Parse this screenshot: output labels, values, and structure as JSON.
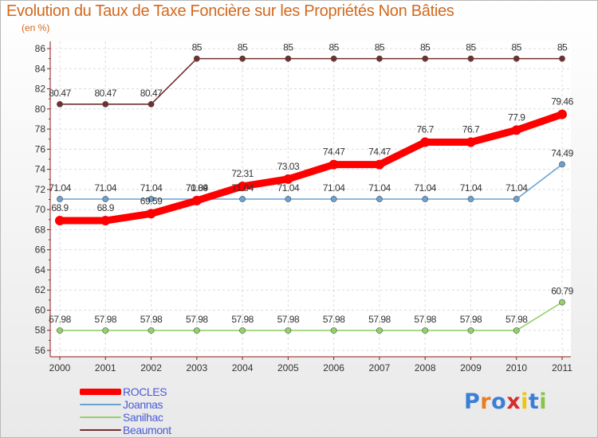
{
  "chart_data": {
    "type": "line",
    "title": "Evolution du Taux de Taxe Foncière sur les Propriétés Non Bâties",
    "subtitle": "(en %)",
    "xlabel": "",
    "ylabel": "",
    "ylim": [
      56,
      86
    ],
    "yticks": [
      56,
      58,
      60,
      62,
      64,
      66,
      68,
      70,
      72,
      74,
      76,
      78,
      80,
      82,
      84,
      86
    ],
    "categories": [
      "2000",
      "2001",
      "2002",
      "2003",
      "2004",
      "2005",
      "2006",
      "2007",
      "2008",
      "2009",
      "2010",
      "2011"
    ],
    "grid": true,
    "legend_position": "bottom-left",
    "series": [
      {
        "name": "Beaumont",
        "color": "#722f2f",
        "values": [
          80.47,
          80.47,
          80.47,
          85,
          85,
          85,
          85,
          85,
          85,
          85,
          85,
          85
        ],
        "labels": [
          "80.47",
          "80.47",
          "80.47",
          "85",
          "85",
          "85",
          "85",
          "85",
          "85",
          "85",
          "85",
          "85"
        ]
      },
      {
        "name": "Joannas",
        "color": "#6aa2d4",
        "values": [
          71.04,
          71.04,
          71.04,
          71.04,
          71.04,
          71.04,
          71.04,
          71.04,
          71.04,
          71.04,
          71.04,
          74.49
        ],
        "labels": [
          "71.04",
          "71.04",
          "71.04",
          "71.04",
          "71.04",
          "71.04",
          "71.04",
          "71.04",
          "71.04",
          "71.04",
          "71.04",
          "74.49"
        ]
      },
      {
        "name": "Sanilhac",
        "color": "#93d16a",
        "values": [
          57.98,
          57.98,
          57.98,
          57.98,
          57.98,
          57.98,
          57.98,
          57.98,
          57.98,
          57.98,
          57.98,
          60.79
        ],
        "labels": [
          "57.98",
          "57.98",
          "57.98",
          "57.98",
          "57.98",
          "57.98",
          "57.98",
          "57.98",
          "57.98",
          "57.98",
          "57.98",
          "60.79"
        ]
      },
      {
        "name": "ROCLES",
        "color": "#ff0000",
        "values": [
          68.9,
          68.9,
          69.59,
          70.89,
          72.31,
          73.03,
          74.47,
          74.47,
          76.7,
          76.7,
          77.9,
          79.46
        ],
        "labels": [
          "68.9",
          "68.9",
          "69.59",
          "70.89",
          "72.31",
          "73.03",
          "74.47",
          "74.47",
          "76.7",
          "76.7",
          "77.9",
          "79.46"
        ]
      }
    ]
  },
  "legend": {
    "items": [
      {
        "label": "ROCLES",
        "color": "#ff0000"
      },
      {
        "label": "Joannas",
        "color": "#6aa2d4"
      },
      {
        "label": "Sanilhac",
        "color": "#93d16a"
      },
      {
        "label": "Beaumont",
        "color": "#722f2f"
      }
    ]
  },
  "logo": {
    "text": "Proxiti",
    "letters": [
      "P",
      "r",
      "o",
      "x",
      "i",
      "t",
      "i"
    ],
    "colors": [
      "#3a7fd5",
      "#e67e22",
      "#3a7fd5",
      "#d62c2c",
      "#f1c40f",
      "#3a7fd5",
      "#8bc34a"
    ]
  }
}
